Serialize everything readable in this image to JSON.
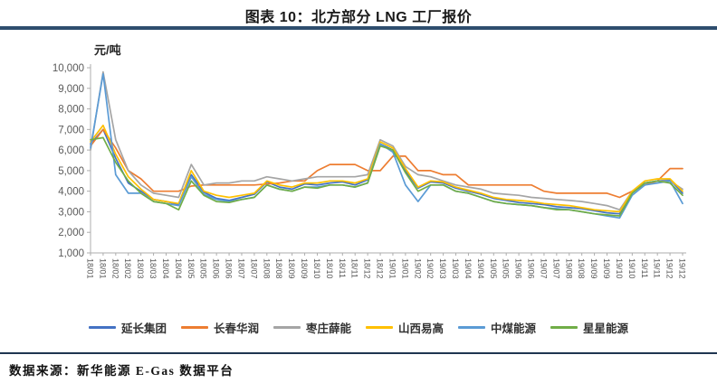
{
  "header": {
    "title": "图表 10：北方部分 LNG 工厂报价"
  },
  "footer": {
    "source_label": "数据来源：新华能源 E-Gas 数据平台"
  },
  "colors": {
    "title_rule": "#2e4e6e",
    "footer_rule": "#1f3550",
    "axis": "#adadad",
    "tick_label": "#595959"
  },
  "chart_data": {
    "type": "line",
    "title": "北方部分 LNG 工厂报价",
    "unit_label": "元/吨",
    "ylabel": "元/吨",
    "xlabel": "",
    "ylim": [
      1000,
      10000
    ],
    "ytick_interval": 1000,
    "ytick_labels": [
      "1,000",
      "2,000",
      "3,000",
      "4,000",
      "5,000",
      "6,000",
      "7,000",
      "8,000",
      "9,000",
      "10,000"
    ],
    "grid": false,
    "legend_position": "bottom",
    "x_labels": [
      "18/01",
      "18/01",
      "18/02",
      "18/02",
      "18/03",
      "18/03",
      "18/04",
      "18/04",
      "18/05",
      "18/05",
      "18/06",
      "18/06",
      "18/07",
      "18/07",
      "18/08",
      "18/08",
      "18/09",
      "18/09",
      "18/10",
      "18/10",
      "18/11",
      "18/11",
      "18/12",
      "18/12",
      "19/01",
      "19/01",
      "19/02",
      "19/02",
      "19/03",
      "19/03",
      "19/04",
      "19/04",
      "19/05",
      "19/05",
      "19/06",
      "19/06",
      "19/07",
      "19/07",
      "19/08",
      "19/08",
      "19/09",
      "19/09",
      "19/10",
      "19/10",
      "19/11",
      "19/11",
      "19/12",
      "19/12"
    ],
    "series": [
      {
        "name": "延长集团",
        "color": "#4472c4",
        "values": [
          6300,
          7000,
          5600,
          4400,
          4000,
          3600,
          3500,
          3350,
          4800,
          3950,
          3650,
          3550,
          3700,
          3850,
          4450,
          4200,
          4100,
          4350,
          4300,
          4400,
          4450,
          4300,
          4550,
          6300,
          6000,
          5000,
          4150,
          4450,
          4400,
          4150,
          4000,
          3850,
          3650,
          3550,
          3450,
          3400,
          3350,
          3250,
          3200,
          3150,
          3050,
          2950,
          2900,
          3950,
          4400,
          4500,
          4550,
          3900
        ]
      },
      {
        "name": "长春华润",
        "color": "#ed7d31",
        "values": [
          6200,
          7000,
          6100,
          5000,
          4600,
          4000,
          4000,
          4000,
          4250,
          4300,
          4300,
          4300,
          4300,
          4300,
          4350,
          4400,
          4500,
          4500,
          5000,
          5300,
          5300,
          5300,
          5000,
          5000,
          5700,
          5700,
          5000,
          5000,
          4800,
          4800,
          4300,
          4300,
          4300,
          4300,
          4300,
          4300,
          4000,
          3900,
          3900,
          3900,
          3900,
          3900,
          3700,
          4000,
          4300,
          4500,
          5100,
          5100
        ]
      },
      {
        "name": "枣庄薛能",
        "color": "#a5a5a5",
        "values": [
          6000,
          9800,
          6500,
          5000,
          4300,
          3900,
          3800,
          3700,
          5300,
          4300,
          4400,
          4400,
          4500,
          4500,
          4700,
          4600,
          4500,
          4600,
          4700,
          4700,
          4700,
          4700,
          4800,
          6500,
          6200,
          5200,
          4800,
          4700,
          4500,
          4300,
          4200,
          4100,
          3900,
          3850,
          3800,
          3700,
          3650,
          3600,
          3550,
          3500,
          3400,
          3300,
          3100,
          4000,
          4400,
          4500,
          4500,
          4100
        ]
      },
      {
        "name": "山西易高",
        "color": "#ffc000",
        "values": [
          6400,
          7200,
          5800,
          4700,
          4100,
          3600,
          3500,
          3400,
          5000,
          4000,
          3800,
          3700,
          3800,
          3900,
          4500,
          4300,
          4200,
          4400,
          4400,
          4500,
          4500,
          4400,
          4600,
          6400,
          6100,
          5100,
          4200,
          4500,
          4450,
          4200,
          4050,
          3900,
          3700,
          3600,
          3550,
          3500,
          3400,
          3350,
          3300,
          3200,
          3100,
          3050,
          3000,
          4000,
          4500,
          4600,
          4600,
          4000
        ]
      },
      {
        "name": "中煤能源",
        "color": "#5b9bd5",
        "values": [
          6100,
          9700,
          4800,
          3900,
          3900,
          3500,
          3400,
          3300,
          4700,
          3850,
          3600,
          3500,
          3600,
          3700,
          4300,
          4100,
          4000,
          4200,
          4200,
          4300,
          4300,
          4200,
          4400,
          6300,
          5900,
          4300,
          3500,
          4300,
          4300,
          4000,
          3900,
          3700,
          3500,
          3400,
          3350,
          3300,
          3200,
          3150,
          3100,
          3000,
          2900,
          2800,
          2700,
          3800,
          4300,
          4400,
          4500,
          3400
        ]
      },
      {
        "name": "星星能源",
        "color": "#70ad47",
        "values": [
          6500,
          6600,
          5400,
          4500,
          3900,
          3500,
          3400,
          3100,
          4500,
          3800,
          3500,
          3450,
          3600,
          3700,
          4300,
          4100,
          4000,
          4200,
          4150,
          4300,
          4300,
          4200,
          4400,
          6200,
          6000,
          4900,
          4000,
          4300,
          4300,
          4000,
          3900,
          3700,
          3500,
          3400,
          3350,
          3300,
          3200,
          3100,
          3100,
          3000,
          2900,
          2850,
          2800,
          3900,
          4400,
          4500,
          4400,
          3800
        ]
      }
    ]
  }
}
